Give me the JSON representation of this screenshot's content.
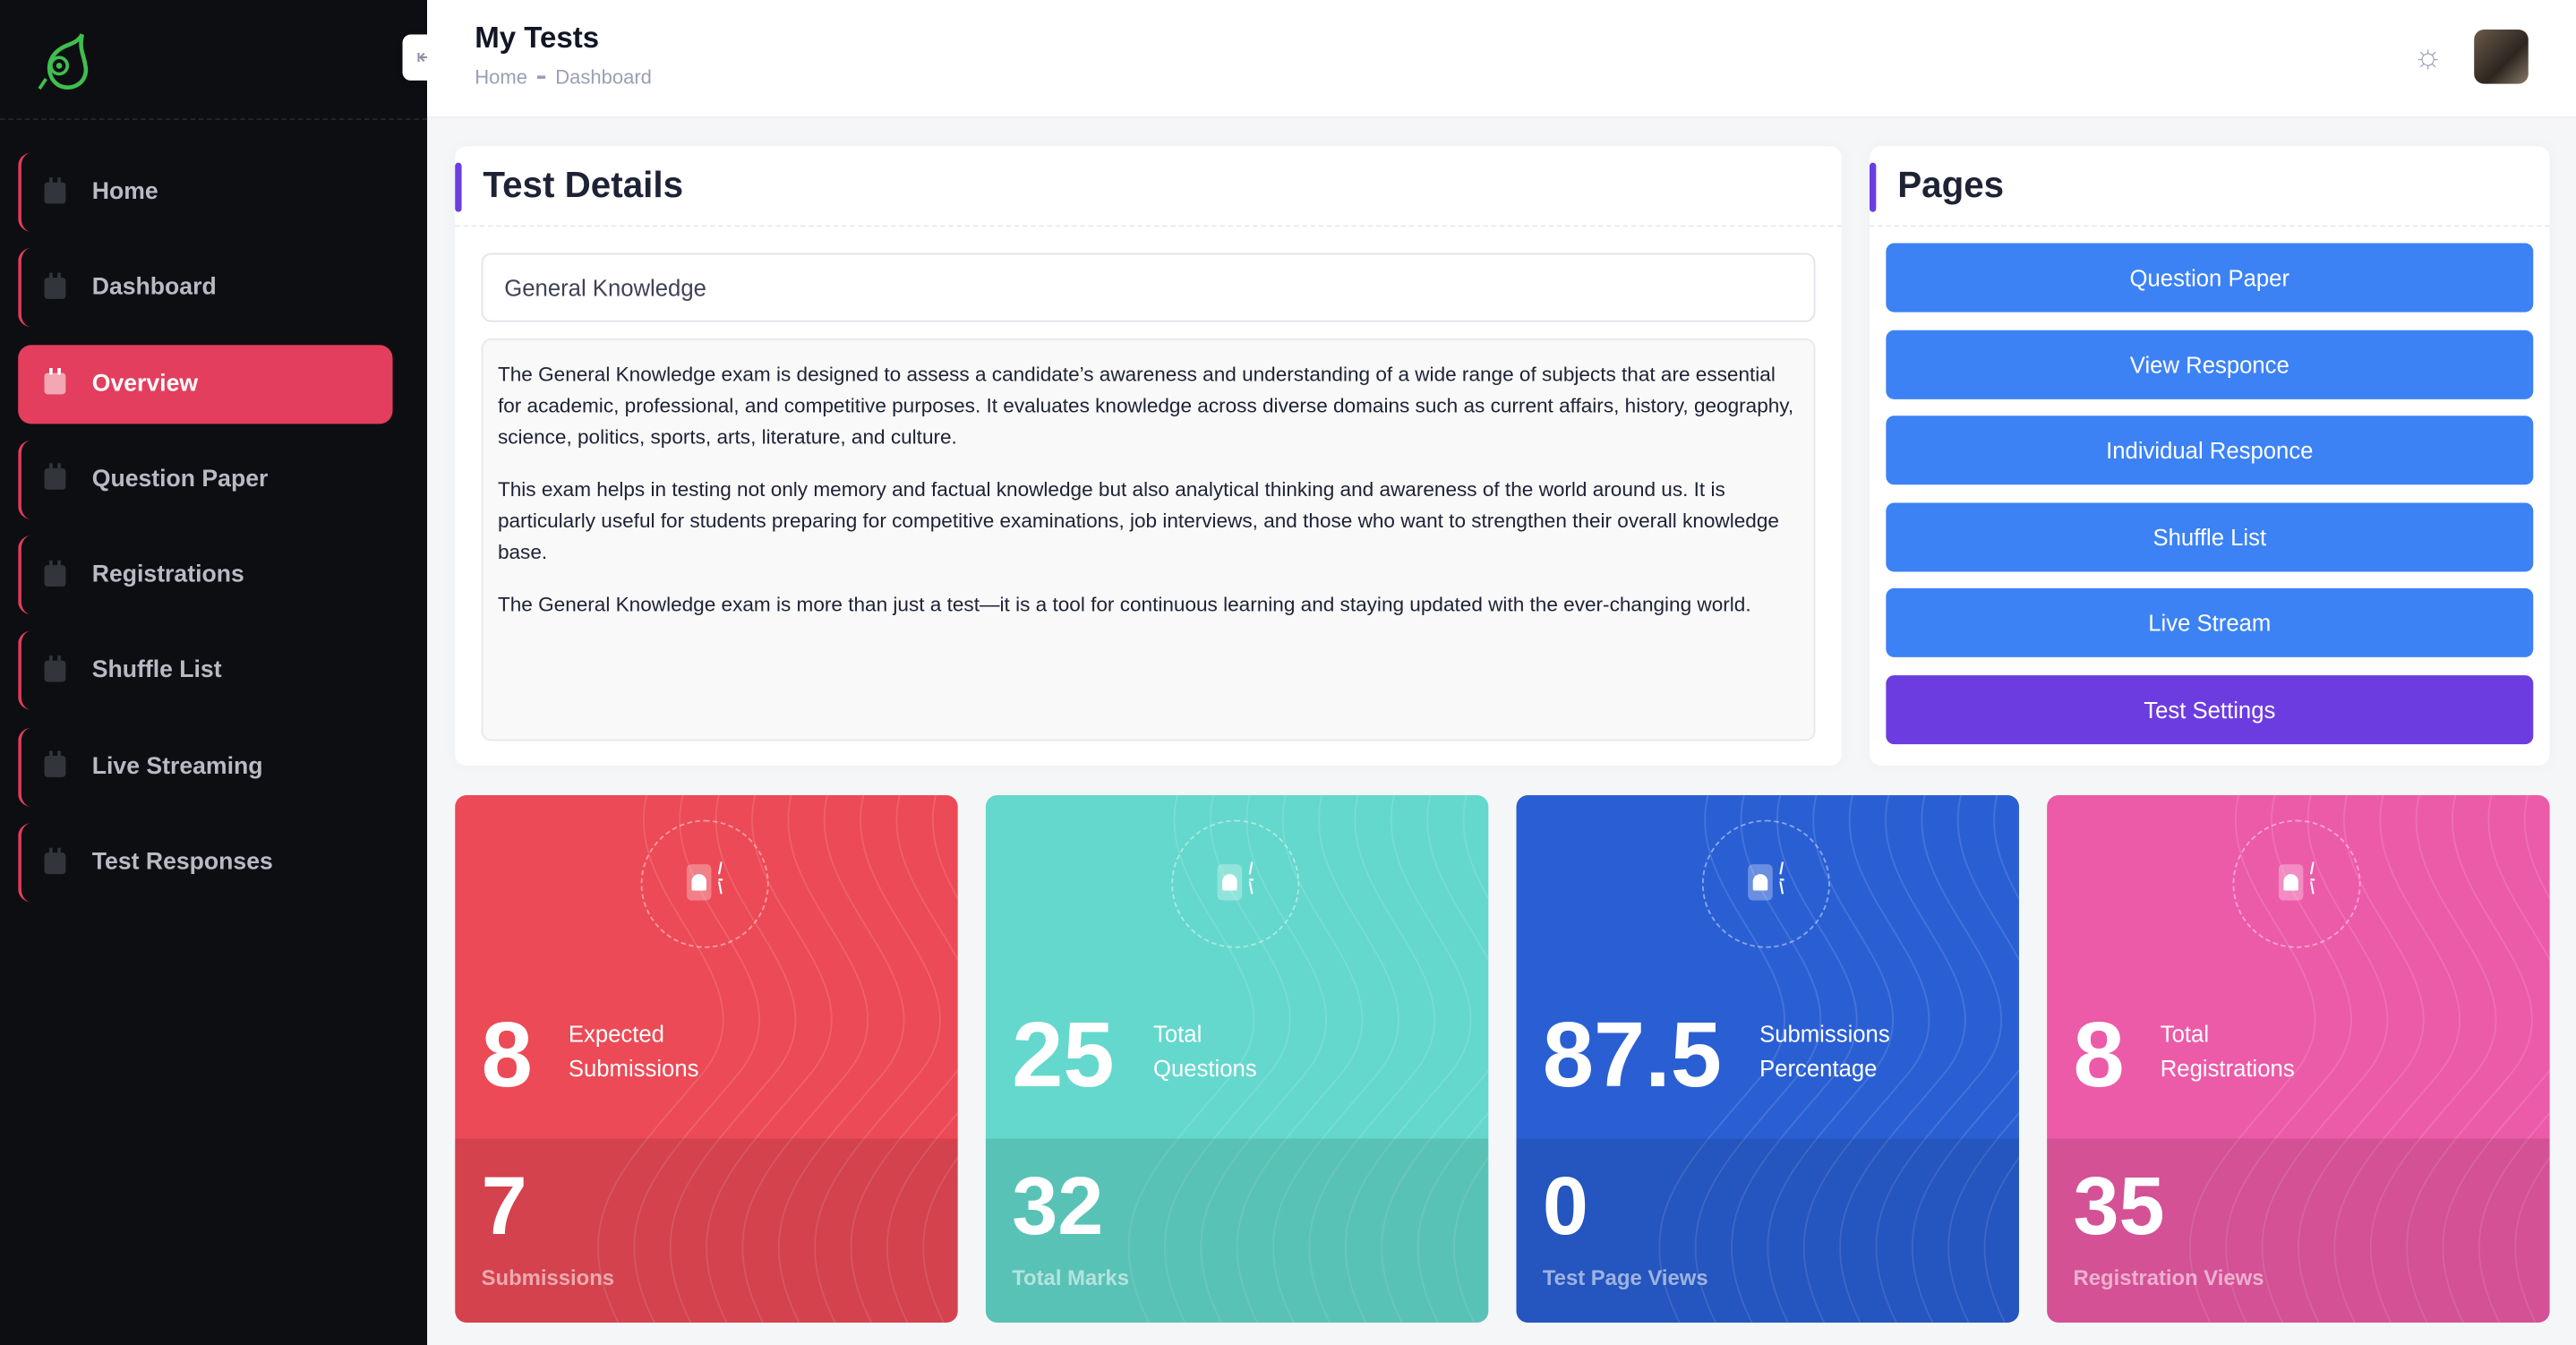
{
  "sidebar": {
    "items": [
      {
        "label": "Home",
        "active": false
      },
      {
        "label": "Dashboard",
        "active": false
      },
      {
        "label": "Overview",
        "active": true
      },
      {
        "label": "Question Paper",
        "active": false
      },
      {
        "label": "Registrations",
        "active": false
      },
      {
        "label": "Shuffle List",
        "active": false
      },
      {
        "label": "Live Streaming",
        "active": false
      },
      {
        "label": "Test Responses",
        "active": false
      }
    ],
    "icon_digit": "8"
  },
  "header": {
    "title": "My Tests",
    "breadcrumb": [
      "Home",
      "Dashboard"
    ]
  },
  "test_details": {
    "title": "Test Details",
    "name": "General Knowledge",
    "description": [
      "The General Knowledge exam is designed to assess a candidate’s awareness and understanding of a wide range of subjects that are essential for academic, professional, and competitive purposes. It evaluates knowledge across diverse domains such as current affairs, history, geography, science, politics, sports, arts, literature, and culture.",
      "This exam helps in testing not only memory and factual knowledge but also analytical thinking and awareness of the world around us. It is particularly useful for students preparing for competitive examinations, job interviews, and those who want to strengthen their overall knowledge base.",
      "The General Knowledge exam is more than just a test—it is a tool for continuous learning and staying updated with the ever-changing world."
    ]
  },
  "pages": {
    "title": "Pages",
    "buttons": [
      "Question Paper",
      "View Responce",
      "Individual Responce",
      "Shuffle List",
      "Live Stream",
      "Test Settings"
    ]
  },
  "stats": [
    {
      "value": "8",
      "label1": "Expected",
      "label2": "Submissions",
      "sub_value": "7",
      "sub_label": "Submissions",
      "color": "#ec4a56"
    },
    {
      "value": "25",
      "label1": "Total",
      "label2": "Questions",
      "sub_value": "32",
      "sub_label": "Total Marks",
      "color": "#64d8cc"
    },
    {
      "value": "87.5",
      "label1": "Submissions",
      "label2": "Percentage",
      "sub_value": "0",
      "sub_label": "Test Page Views",
      "color": "#2a5fd4"
    },
    {
      "value": "8",
      "label1": "Total",
      "label2": "Registrations",
      "sub_value": "35",
      "sub_label": "Registration Views",
      "color": "#ec5ba8"
    }
  ],
  "colors": {
    "accent": "#e33e5d",
    "button": "#3c82f5",
    "button_alt": "#6c3ce0",
    "sidebar_bg": "#0d0e12"
  }
}
